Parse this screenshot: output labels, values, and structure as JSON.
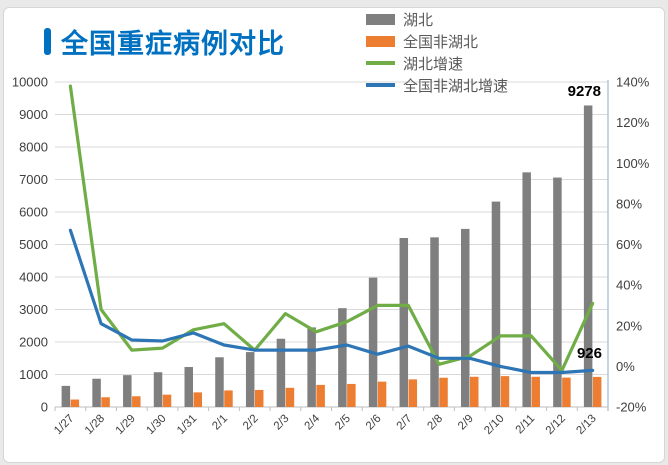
{
  "title": {
    "text": "全国重症病例对比",
    "accent_color": "#0070c0"
  },
  "legend": [
    {
      "label": "湖北",
      "swatch": "bar",
      "color": "#7f7f7f"
    },
    {
      "label": "全国非湖北",
      "swatch": "bar",
      "color": "#ed7d31"
    },
    {
      "label": "湖北增速",
      "swatch": "line",
      "color": "#70ad47"
    },
    {
      "label": "全国非湖北增速",
      "swatch": "line",
      "color": "#2e75b6"
    }
  ],
  "chart_data": {
    "type": "bar+line combo",
    "title": "全国重症病例对比",
    "categories": [
      "1/27",
      "1/28",
      "1/29",
      "1/30",
      "1/31",
      "2/1",
      "2/2",
      "2/3",
      "2/4",
      "2/5",
      "2/6",
      "2/7",
      "2/8",
      "2/9",
      "2/10",
      "2/11",
      "2/12",
      "2/13"
    ],
    "series": [
      {
        "name": "湖北",
        "type": "bar",
        "axis": "left",
        "color": "#7f7f7f",
        "values": [
          650,
          870,
          980,
          1070,
          1230,
          1530,
          1690,
          2100,
          2450,
          3040,
          3980,
          5200,
          5220,
          5480,
          6320,
          7220,
          7060,
          9278
        ]
      },
      {
        "name": "全国非湖北",
        "type": "bar",
        "axis": "left",
        "color": "#ed7d31",
        "values": [
          230,
          300,
          330,
          380,
          450,
          510,
          525,
          590,
          680,
          710,
          780,
          850,
          900,
          930,
          950,
          930,
          905,
          926
        ]
      },
      {
        "name": "湖北增速",
        "type": "line",
        "axis": "right",
        "color": "#70ad47",
        "values": [
          138,
          28,
          8,
          9,
          18,
          21,
          8,
          26,
          17,
          22,
          30,
          30,
          1,
          5,
          15,
          15,
          -2,
          31
        ]
      },
      {
        "name": "全国非湖北增速",
        "type": "line",
        "axis": "right",
        "color": "#2e75b6",
        "values": [
          67,
          21,
          13,
          12.5,
          16.5,
          10.5,
          8,
          8,
          8,
          10.5,
          6,
          10,
          4,
          4,
          0,
          -3,
          -3,
          -2
        ]
      }
    ],
    "left_axis": {
      "min": 0,
      "max": 10000,
      "step": 1000,
      "ticks": [
        "0",
        "1000",
        "2000",
        "3000",
        "4000",
        "5000",
        "6000",
        "7000",
        "8000",
        "9000",
        "10000"
      ]
    },
    "right_axis": {
      "min": -20,
      "max": 140,
      "step": 20,
      "ticks": [
        "-20%",
        "0%",
        "20%",
        "40%",
        "60%",
        "80%",
        "100%",
        "120%",
        "140%"
      ]
    },
    "data_labels": [
      {
        "text": "9278",
        "series": "湖北",
        "category": "2/13"
      },
      {
        "text": "926",
        "series": "全国非湖北",
        "category": "2/13"
      }
    ],
    "grid": "horizontal",
    "legend_position": "top-right",
    "colors": {
      "gridline": "#d9d9d9",
      "axis_line": "#bfbfbf",
      "right_axis_line": "#a9c3de",
      "tick_text": "#404040",
      "data_label_text": "#000000"
    }
  }
}
